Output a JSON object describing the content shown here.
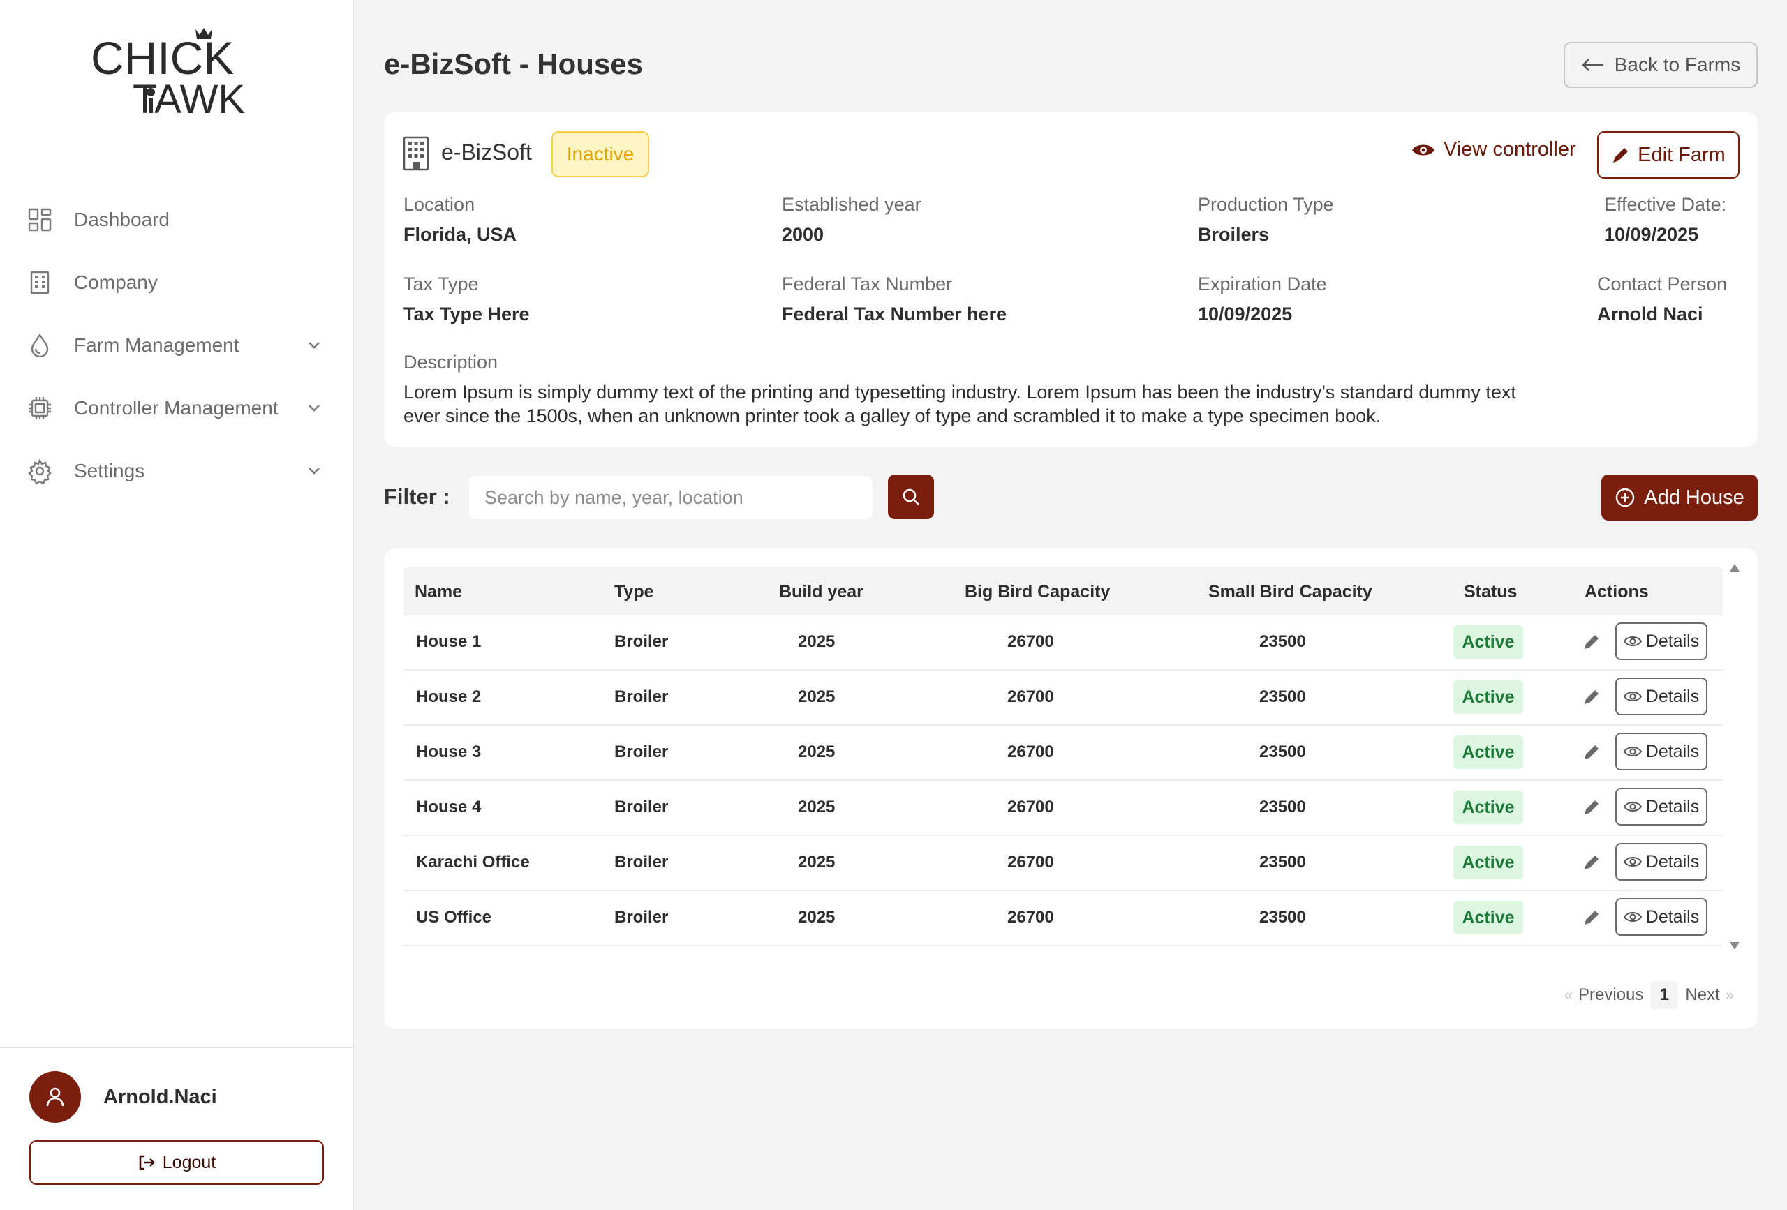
{
  "brand": {
    "logo_text_top": "CHICK",
    "logo_text_bottom": "TAWK",
    "accent_color": "#7a1f0e"
  },
  "sidebar": {
    "items": [
      {
        "label": "Dashboard",
        "icon": "dashboard-icon",
        "has_chevron": false
      },
      {
        "label": "Company",
        "icon": "building-icon",
        "has_chevron": false
      },
      {
        "label": "Farm Management",
        "icon": "droplet-icon",
        "has_chevron": true
      },
      {
        "label": "Controller Management",
        "icon": "chip-icon",
        "has_chevron": true
      },
      {
        "label": "Settings",
        "icon": "gear-icon",
        "has_chevron": true
      }
    ],
    "user": {
      "name": "Arnold.Naci",
      "icon": "user-icon"
    },
    "logout_label": "Logout"
  },
  "header": {
    "title": "e-BizSoft - Houses",
    "back_label": "Back to Farms"
  },
  "farm": {
    "name": "e-BizSoft",
    "status": "Inactive",
    "view_controller_label": "View controller",
    "edit_label": "Edit Farm",
    "fields": {
      "location": {
        "label": "Location",
        "value": "Florida, USA"
      },
      "established": {
        "label": "Established year",
        "value": "2000"
      },
      "production": {
        "label": "Production Type",
        "value": "Broilers"
      },
      "effective": {
        "label": "Effective Date:",
        "value": "10/09/2025"
      },
      "tax_type": {
        "label": "Tax Type",
        "value": "Tax Type Here"
      },
      "federal_tax": {
        "label": "Federal Tax Number",
        "value": "Federal Tax Number here"
      },
      "expiration": {
        "label": "Expiration Date",
        "value": "10/09/2025"
      },
      "contact": {
        "label": "Contact Person",
        "value": "Arnold Naci"
      }
    },
    "description": {
      "label": "Description",
      "line1": "Lorem Ipsum is simply dummy text of the printing and typesetting industry. Lorem Ipsum has been the industry's standard dummy text",
      "line2": "ever since the 1500s, when an unknown printer took a galley of type and scrambled it to make a type specimen book."
    }
  },
  "filter": {
    "label": "Filter :",
    "placeholder": "Search by name, year, location",
    "value": ""
  },
  "add_house_label": "Add House",
  "table": {
    "columns": [
      "Name",
      "Type",
      "Build year",
      "Big Bird Capacity",
      "Small Bird Capacity",
      "Status",
      "Actions"
    ],
    "rows": [
      {
        "name": "House 1",
        "type": "Broiler",
        "year": "2025",
        "big": "26700",
        "small": "23500",
        "status": "Active"
      },
      {
        "name": "House 2",
        "type": "Broiler",
        "year": "2025",
        "big": "26700",
        "small": "23500",
        "status": "Active"
      },
      {
        "name": "House 3",
        "type": "Broiler",
        "year": "2025",
        "big": "26700",
        "small": "23500",
        "status": "Active"
      },
      {
        "name": "House 4",
        "type": "Broiler",
        "year": "2025",
        "big": "26700",
        "small": "23500",
        "status": "Active"
      },
      {
        "name": "Karachi Office",
        "type": "Broiler",
        "year": "2025",
        "big": "26700",
        "small": "23500",
        "status": "Active"
      },
      {
        "name": "US Office",
        "type": "Broiler",
        "year": "2025",
        "big": "26700",
        "small": "23500",
        "status": "Active"
      }
    ],
    "details_label": "Details"
  },
  "pagination": {
    "previous_label": "Previous",
    "next_label": "Next",
    "current_page": "1"
  }
}
